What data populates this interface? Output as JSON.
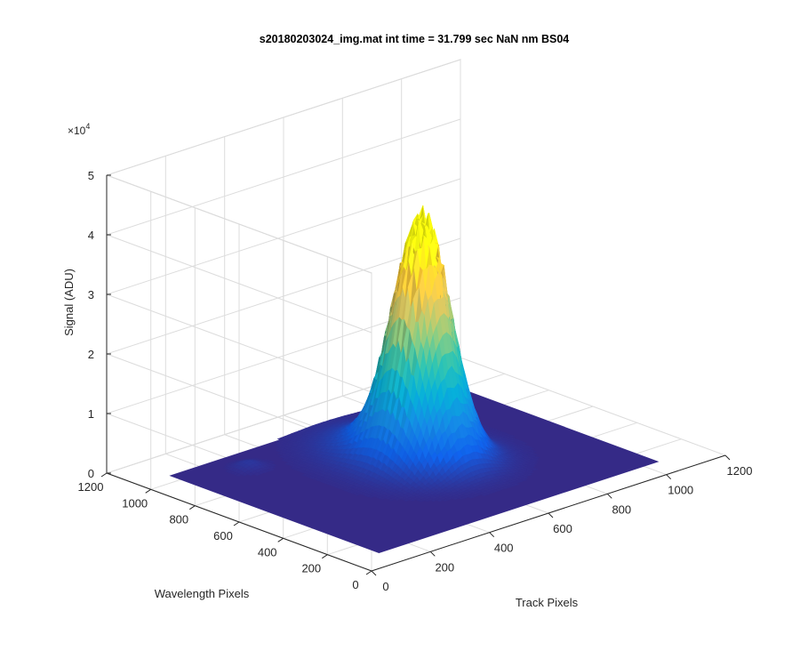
{
  "chart_data": {
    "type": "surface",
    "title": "s20180203024_img.mat int time = 31.799 sec  NaN nm BS04",
    "xlabel": "Track Pixels",
    "ylabel": "Wavelength Pixels",
    "zlabel": "Signal (ADU)",
    "z_exponent_prefix": "×10",
    "z_exponent_power": "4",
    "xlim": [
      0,
      1200
    ],
    "ylim": [
      0,
      1200
    ],
    "zlim": [
      0,
      50000
    ],
    "x_ticks": [
      "0",
      "200",
      "400",
      "600",
      "800",
      "1000",
      "1200"
    ],
    "y_ticks": [
      "0",
      "200",
      "400",
      "600",
      "800",
      "1000",
      "1200"
    ],
    "z_ticks": [
      "0",
      "1",
      "2",
      "3",
      "4",
      "5"
    ],
    "z_tick_values": [
      0,
      10000,
      20000,
      30000,
      40000,
      50000
    ],
    "grid": true,
    "colormap": "parula",
    "colormap_colors": [
      "#352a87",
      "#0f5cdd",
      "#1481d6",
      "#06a4ca",
      "#2eb7a4",
      "#87bf77",
      "#d1bb59",
      "#fec832",
      "#f9fb0e"
    ],
    "data_extent": {
      "x": [
        100,
        1050
      ],
      "y": [
        100,
        1050
      ]
    },
    "peak": {
      "x": 620,
      "y": 600,
      "signal": 36000
    }
  }
}
